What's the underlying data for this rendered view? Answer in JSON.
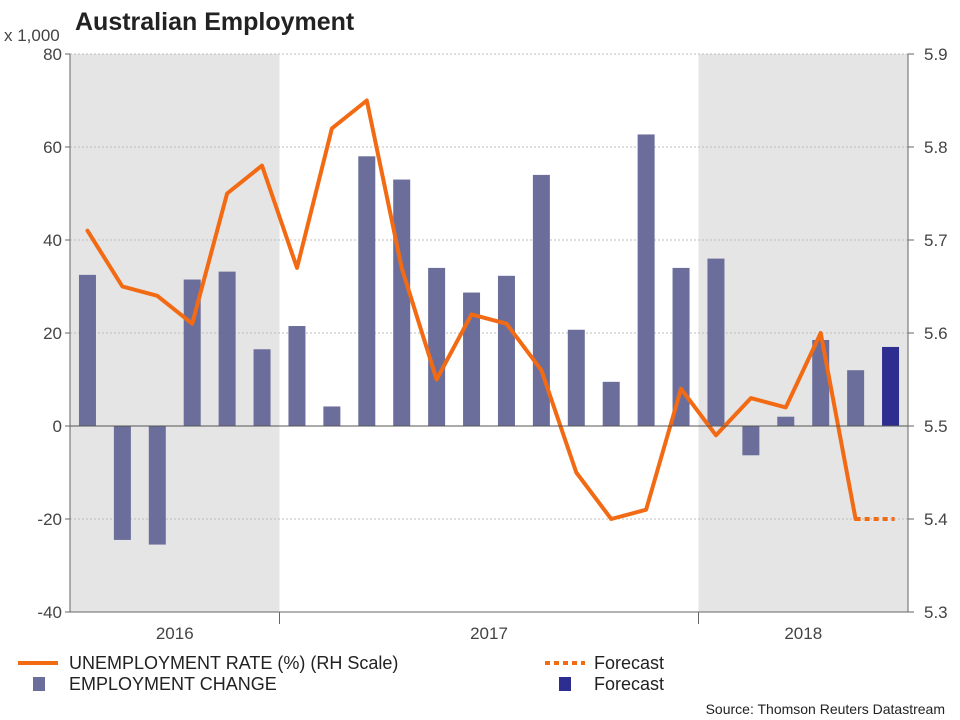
{
  "chart_data": {
    "type": "bar+line",
    "title": "Australian Employment",
    "left_unit_label": "x 1,000",
    "left_axis": {
      "min": -40,
      "max": 80,
      "ticks": [
        80,
        60,
        40,
        20,
        0,
        -20,
        -40
      ]
    },
    "right_axis": {
      "min": 5.3,
      "max": 5.9,
      "ticks": [
        "5.9",
        "5.8",
        "5.7",
        "5.6",
        "5.5",
        "5.4",
        "5.3"
      ]
    },
    "year_labels": [
      "2016",
      "2017",
      "2018"
    ],
    "shaded_periods": [
      "2016",
      "2018"
    ],
    "employment_change": {
      "name": "EMPLOYMENT CHANGE",
      "values": [
        32.5,
        -24.5,
        -25.5,
        31.5,
        33.2,
        16.5,
        21.5,
        4.2,
        58.0,
        53.0,
        34.0,
        28.7,
        32.3,
        54.0,
        20.7,
        9.5,
        62.7,
        34.0,
        36.0,
        -6.3,
        2.0,
        18.5,
        12.0
      ],
      "color": "#6b6e9a"
    },
    "employment_forecast": {
      "name": "Forecast",
      "value": 17.0,
      "color": "#2e2e91"
    },
    "unemployment_rate": {
      "name": "UNEMPLOYMENT RATE (%) (RH Scale)",
      "values": [
        5.71,
        5.65,
        5.64,
        5.61,
        5.75,
        5.78,
        5.67,
        5.82,
        5.85,
        5.67,
        5.55,
        5.62,
        5.61,
        5.56,
        5.45,
        5.4,
        5.41,
        5.54,
        5.49,
        5.53,
        5.52,
        5.6,
        5.4
      ],
      "color": "#f26b14"
    },
    "unemployment_forecast": {
      "name": "Forecast",
      "value": 5.4,
      "color": "#f26b14"
    },
    "legend": {
      "rate_label": "UNEMPLOYMENT RATE (%) (RH Scale)",
      "rate_forecast_label": "Forecast",
      "employment_label": "EMPLOYMENT CHANGE",
      "employment_forecast_label": "Forecast"
    },
    "source": "Source: Thomson Reuters Datastream"
  }
}
